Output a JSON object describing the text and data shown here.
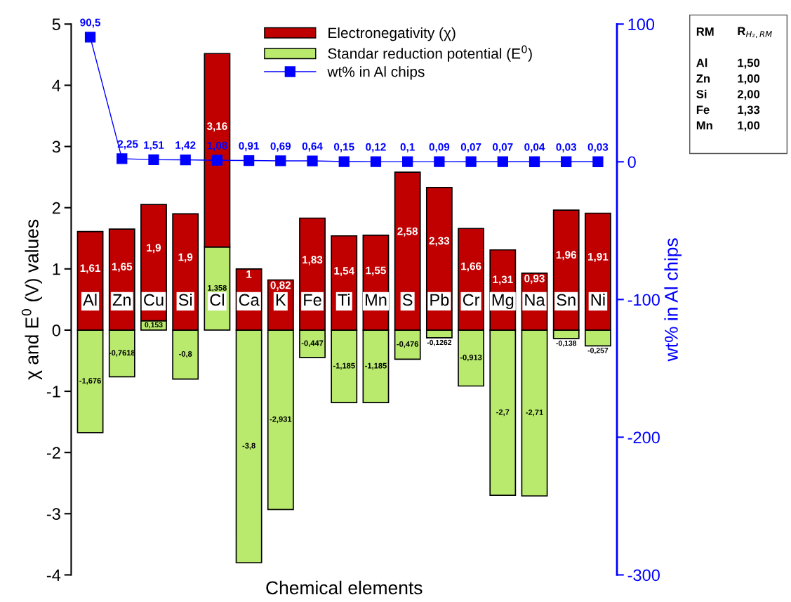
{
  "chart_data": {
    "type": "bar",
    "stacked": true,
    "xlabel": "Chemical elements",
    "ylabel": "χ and E$^{0}$ (V) values",
    "y2label": "wt% in Al chips",
    "categories": [
      "Al",
      "Zn",
      "Cu",
      "Si",
      "Cl",
      "Ca",
      "K",
      "Fe",
      "Ti",
      "Mn",
      "S",
      "Pb",
      "Cr",
      "Mg",
      "Na",
      "Sn",
      "Ni"
    ],
    "series": [
      {
        "name": "Standar reduction potential (E$^{0}$)",
        "color": "#b9ea6e",
        "values": [
          -1.676,
          -0.7618,
          0.153,
          -0.8,
          1.358,
          -3.8,
          -2.931,
          -0.447,
          -1.185,
          -1.185,
          -0.476,
          -0.1262,
          -0.913,
          -2.7,
          -2.71,
          -0.138,
          -0.257
        ],
        "value_labels": [
          "-1,676",
          "-0,7618",
          "0,153",
          "-0,8",
          "1,358",
          "-3,8",
          "-2,931",
          "-0,447",
          "-1,185",
          "-1,185",
          "-0,476",
          "-0,1262",
          "-0,913",
          "-2,7",
          "-2,71",
          "-0,138",
          "-0,257"
        ]
      },
      {
        "name": "Electronegativity (χ)",
        "color": "#c00000",
        "values": [
          1.61,
          1.65,
          1.9,
          1.9,
          3.16,
          1,
          0.82,
          1.83,
          1.54,
          1.55,
          2.58,
          2.33,
          1.66,
          1.31,
          0.93,
          1.96,
          1.91
        ],
        "value_labels": [
          "1,61",
          "1,65",
          "1,9",
          "1,9",
          "3,16",
          "1",
          "0,82",
          "1,83",
          "1,54",
          "1,55",
          "2,58",
          "2,33",
          "1,66",
          "1,31",
          "0,93",
          "1,96",
          "1,91"
        ]
      },
      {
        "name": "wt% in Al chips",
        "type": "line",
        "axis": "y2",
        "color": "#0000ff",
        "marker": "square",
        "values": [
          90.5,
          2.25,
          1.51,
          1.42,
          1.08,
          0.91,
          0.69,
          0.64,
          0.15,
          0.12,
          0.1,
          0.09,
          0.07,
          0.07,
          0.04,
          0.03,
          0.03
        ],
        "value_labels": [
          "90,5",
          "2,25",
          "1,51",
          "1,42",
          "1,08",
          "0,91",
          "0,69",
          "0,64",
          "0,15",
          "0,12",
          "0,1",
          "0,09",
          "0,07",
          "0,07",
          "0,04",
          "0,03",
          "0,03"
        ]
      }
    ],
    "ylim": [
      -4,
      5
    ],
    "yticks": [
      -4,
      -3,
      -2,
      -1,
      0,
      1,
      2,
      3,
      4,
      5
    ],
    "y2lim": [
      -300,
      100
    ],
    "y2ticks": [
      -300,
      -200,
      -100,
      0,
      100
    ],
    "legend": "top",
    "grid": false,
    "annotations": [
      "RM",
      "R$_{H₂,RM}$",
      "Al",
      "1,50",
      "Zn",
      "1,00",
      "Si",
      "2,00",
      "Fe",
      "1,33",
      "Mn",
      "1,00"
    ]
  }
}
